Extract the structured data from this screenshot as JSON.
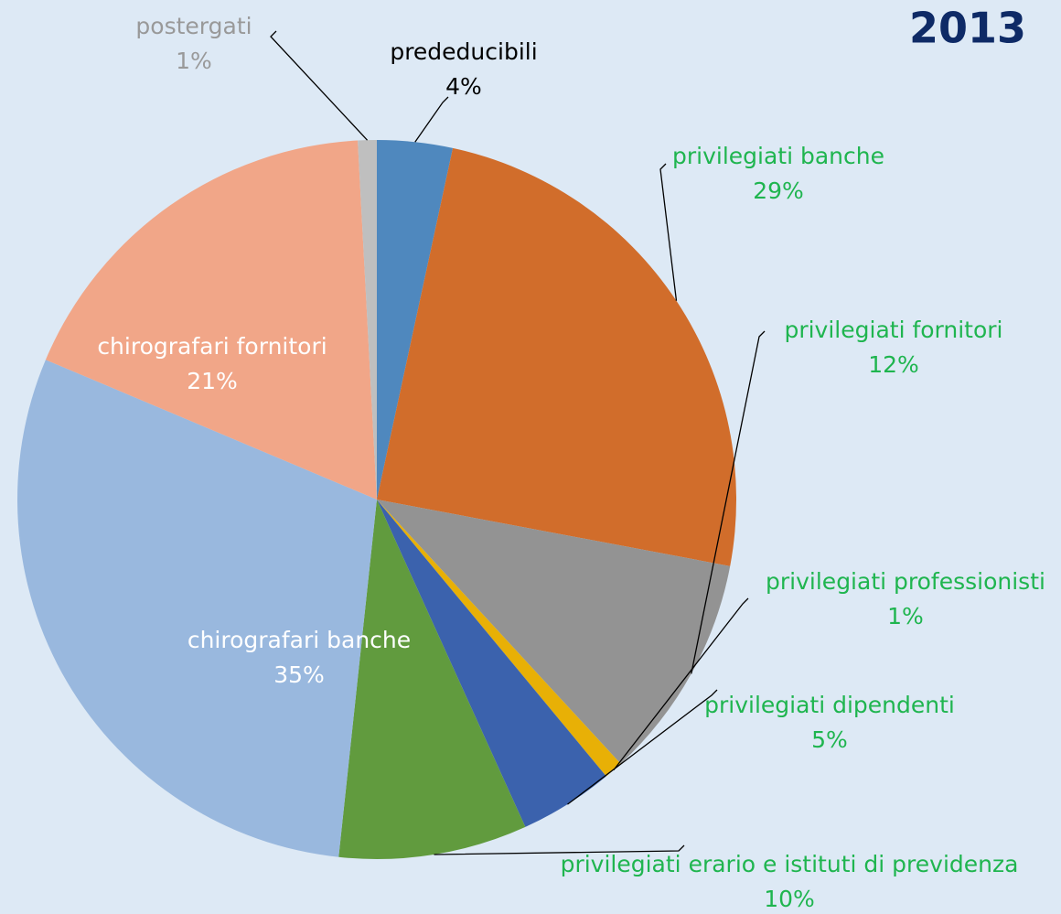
{
  "chart_data": {
    "type": "pie",
    "title": "2013",
    "categories": [
      "prededucibili",
      "privilegiati banche",
      "privilegiati fornitori",
      "privilegiati professionisti",
      "privilegiati dipendenti",
      "privilegiati erario e istituti di previdenza",
      "chirografari banche",
      "chirografari fornitori",
      "postergati"
    ],
    "values": [
      4,
      29,
      12,
      1,
      5,
      10,
      35,
      21,
      1
    ],
    "value_labels": [
      "4%",
      "29%",
      "12%",
      "1%",
      "5%",
      "10%",
      "35%",
      "21%",
      "1%"
    ],
    "colors": [
      "#4f88be",
      "#d16d2b",
      "#939393",
      "#e8b006",
      "#3b62ad",
      "#619b3e",
      "#99b8de",
      "#f1a688",
      "#bfbfbf"
    ]
  }
}
